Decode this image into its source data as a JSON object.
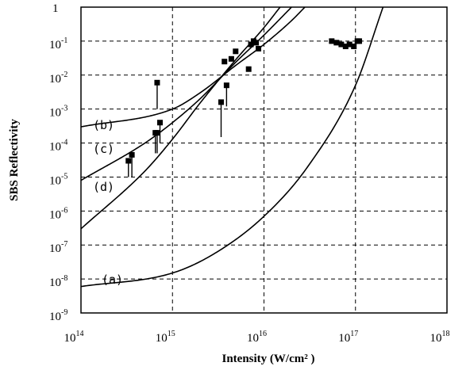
{
  "chart_data": {
    "type": "scatter",
    "title": "",
    "xlabel": "Intensity  (W/cm² )",
    "ylabel": "SBS Reflectivity",
    "x_scale": "log",
    "y_scale": "log",
    "xlim": [
      100000000000000.0,
      1e+18
    ],
    "ylim": [
      1e-09,
      1
    ],
    "grid": true,
    "grid_style": "dashed",
    "x_ticks": [
      {
        "value": 100000000000000.0,
        "base": "10",
        "exp": "14"
      },
      {
        "value": 1000000000000000.0,
        "base": "10",
        "exp": "15"
      },
      {
        "value": 1e+16,
        "base": "10",
        "exp": "16"
      },
      {
        "value": 1e+17,
        "base": "10",
        "exp": "17"
      },
      {
        "value": 1e+18,
        "base": "10",
        "exp": "18"
      }
    ],
    "y_ticks": [
      {
        "value": 1,
        "base": "1",
        "exp": ""
      },
      {
        "value": 0.1,
        "base": "10",
        "exp": "-1"
      },
      {
        "value": 0.01,
        "base": "10",
        "exp": "-2"
      },
      {
        "value": 0.001,
        "base": "10",
        "exp": "-3"
      },
      {
        "value": 0.0001,
        "base": "10",
        "exp": "-4"
      },
      {
        "value": 1e-05,
        "base": "10",
        "exp": "-5"
      },
      {
        "value": 1e-06,
        "base": "10",
        "exp": "-6"
      },
      {
        "value": 1e-07,
        "base": "10",
        "exp": "-7"
      },
      {
        "value": 1e-08,
        "base": "10",
        "exp": "-8"
      },
      {
        "value": 1e-09,
        "base": "10",
        "exp": "-9"
      }
    ],
    "curves": [
      {
        "label": "(a)",
        "x": [
          100000000000000.0,
          1000000000000000.0,
          3000000000000000.0,
          1e+16,
          3e+16,
          1e+17,
          2e+17
        ],
        "y": [
          6e-09,
          1.5e-08,
          6e-08,
          7e-07,
          2e-05,
          0.005,
          1
        ]
      },
      {
        "label": "(b)",
        "x": [
          100000000000000.0,
          1000000000000000.0,
          2000000000000000.0,
          5000000000000000.0,
          1e+16,
          2e+16,
          2.8e+16
        ],
        "y": [
          0.0003,
          0.001,
          0.003,
          0.02,
          0.08,
          0.4,
          1
        ]
      },
      {
        "label": "(c)",
        "x": [
          100000000000000.0,
          500000000000000.0,
          1000000000000000.0,
          2000000000000000.0,
          5000000000000000.0,
          1e+16,
          2e+16
        ],
        "y": [
          8e-06,
          0.0001,
          0.0004,
          0.002,
          0.025,
          0.15,
          1
        ]
      },
      {
        "label": "(d)",
        "x": [
          100000000000000.0,
          500000000000000.0,
          1000000000000000.0,
          2000000000000000.0,
          5000000000000000.0,
          1e+16,
          1.5e+16
        ],
        "y": [
          3e-07,
          1.5e-05,
          0.00013,
          0.0015,
          0.03,
          0.25,
          1
        ]
      }
    ],
    "points": [
      {
        "x": 330000000000000.0,
        "y": 3e-05,
        "y_low": 1e-05
      },
      {
        "x": 360000000000000.0,
        "y": 4.5e-05,
        "y_low": 1e-05
      },
      {
        "x": 650000000000000.0,
        "y": 0.0002,
        "y_low": 5e-05
      },
      {
        "x": 680000000000000.0,
        "y": 0.0002,
        "y_low": 5e-05
      },
      {
        "x": 680000000000000.0,
        "y": 0.006,
        "y_low": 0.001
      },
      {
        "x": 730000000000000.0,
        "y": 0.0004,
        "y_low": 0.0001
      },
      {
        "x": 3400000000000000.0,
        "y": 0.0016,
        "y_low": 0.00015
      },
      {
        "x": 3700000000000000.0,
        "y": 0.025
      },
      {
        "x": 3900000000000000.0,
        "y": 0.005,
        "y_low": 0.0012
      },
      {
        "x": 4400000000000000.0,
        "y": 0.03
      },
      {
        "x": 4900000000000000.0,
        "y": 0.05
      },
      {
        "x": 6800000000000000.0,
        "y": 0.015
      },
      {
        "x": 7200000000000000.0,
        "y": 0.08
      },
      {
        "x": 7700000000000000.0,
        "y": 0.1
      },
      {
        "x": 8200000000000000.0,
        "y": 0.09
      },
      {
        "x": 8700000000000000.0,
        "y": 0.06
      },
      {
        "x": 5.5e+16,
        "y": 0.1
      },
      {
        "x": 6.2e+16,
        "y": 0.09
      },
      {
        "x": 7e+16,
        "y": 0.08
      },
      {
        "x": 7.8e+16,
        "y": 0.07
      },
      {
        "x": 8.6e+16,
        "y": 0.08
      },
      {
        "x": 9.6e+16,
        "y": 0.07
      },
      {
        "x": 1.05e+17,
        "y": 0.1
      },
      {
        "x": 1.1e+17,
        "y": 0.1
      }
    ]
  }
}
